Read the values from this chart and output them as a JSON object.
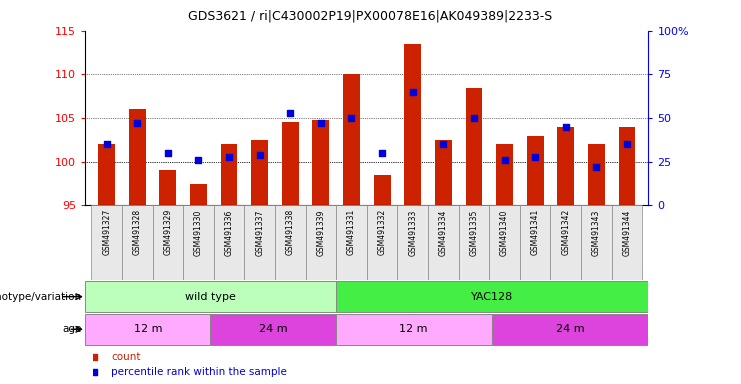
{
  "title": "GDS3621 / ri|C430002P19|PX00078E16|AK049389|2233-S",
  "samples": [
    "GSM491327",
    "GSM491328",
    "GSM491329",
    "GSM491330",
    "GSM491336",
    "GSM491337",
    "GSM491338",
    "GSM491339",
    "GSM491331",
    "GSM491332",
    "GSM491333",
    "GSM491334",
    "GSM491335",
    "GSM491340",
    "GSM491341",
    "GSM491342",
    "GSM491343",
    "GSM491344"
  ],
  "counts": [
    102.0,
    106.0,
    99.0,
    97.5,
    102.0,
    102.5,
    104.5,
    104.8,
    110.0,
    98.5,
    113.5,
    102.5,
    108.5,
    102.0,
    103.0,
    104.0,
    102.0,
    104.0
  ],
  "percentile_ranks": [
    35,
    47,
    30,
    26,
    28,
    29,
    53,
    47,
    50,
    30,
    65,
    35,
    50,
    26,
    28,
    45,
    22,
    35
  ],
  "ylim_left": [
    95,
    115
  ],
  "ylim_right": [
    0,
    100
  ],
  "yticks_left": [
    95,
    100,
    105,
    110,
    115
  ],
  "yticks_right": [
    0,
    25,
    50,
    75,
    100
  ],
  "yticklabels_right": [
    "0",
    "25",
    "50",
    "75",
    "100%"
  ],
  "bar_color": "#CC2200",
  "dot_color": "#0000DD",
  "bar_baseline": 95,
  "grid_ticks": [
    100,
    105,
    110
  ],
  "genotype_groups": [
    {
      "label": "wild type",
      "start": 0,
      "end": 8,
      "color": "#BBFFBB"
    },
    {
      "label": "YAC128",
      "start": 8,
      "end": 18,
      "color": "#44EE44"
    }
  ],
  "age_groups": [
    {
      "label": "12 m",
      "start": 0,
      "end": 4,
      "color": "#FFAAFF"
    },
    {
      "label": "24 m",
      "start": 4,
      "end": 8,
      "color": "#DD44DD"
    },
    {
      "label": "12 m",
      "start": 8,
      "end": 13,
      "color": "#FFAAFF"
    },
    {
      "label": "24 m",
      "start": 13,
      "end": 18,
      "color": "#DD44DD"
    }
  ],
  "fig_width": 7.41,
  "fig_height": 3.84,
  "dpi": 100
}
